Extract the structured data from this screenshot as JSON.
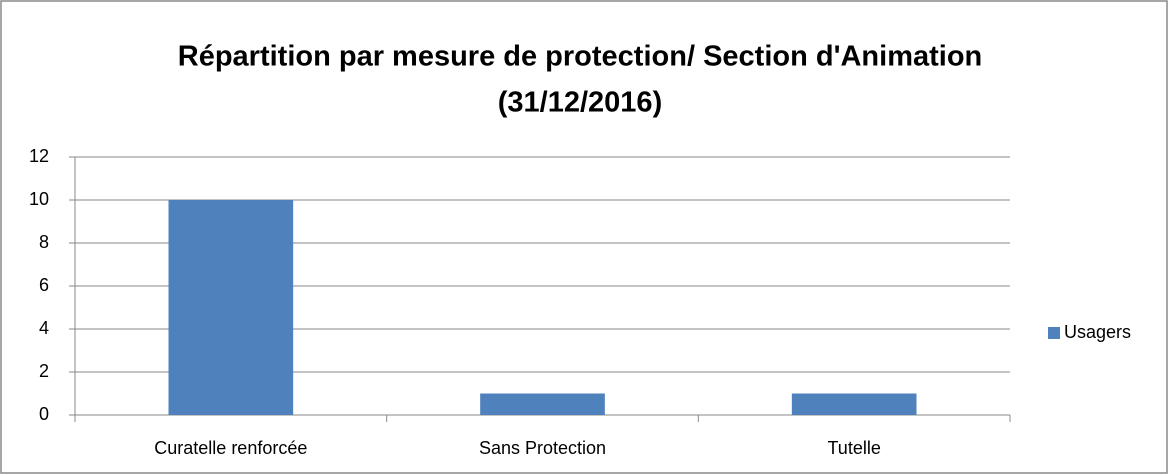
{
  "chart_data": {
    "type": "bar",
    "title": [
      "Répartition par mesure de protection/ Section d'Animation",
      "(31/12/2016)"
    ],
    "categories": [
      "Curatelle renforcée",
      "Sans Protection",
      "Tutelle"
    ],
    "series": [
      {
        "name": "Usagers",
        "color": "#4f81bd",
        "values": [
          10,
          1,
          1
        ]
      }
    ],
    "ylim": [
      0,
      12
    ],
    "yticks": [
      0,
      2,
      4,
      6,
      8,
      10,
      12
    ],
    "grid": true,
    "legend": "right"
  }
}
